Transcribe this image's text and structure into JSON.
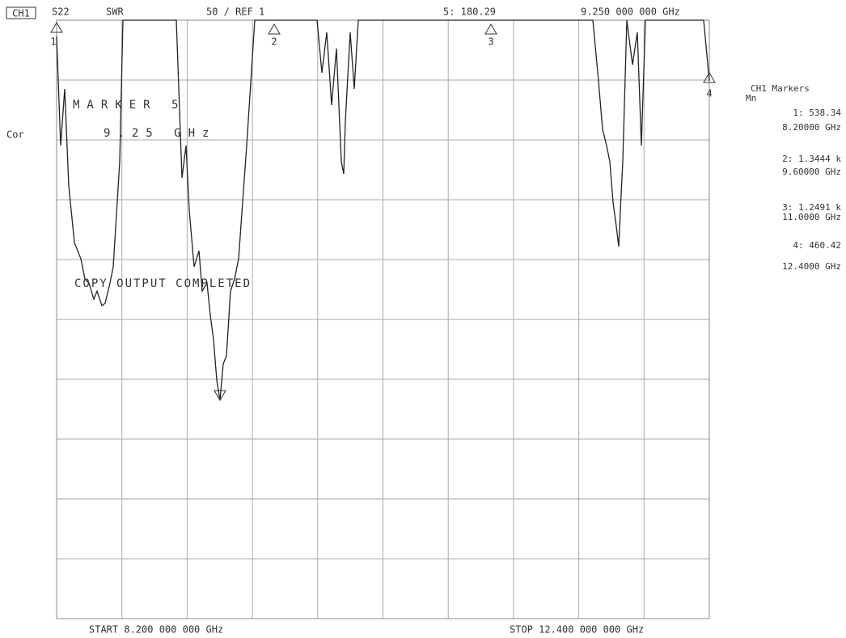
{
  "header": {
    "channel": "CH1",
    "parameter": "S22",
    "format": "SWR",
    "scale": "50 / REF 1",
    "active_marker_value": "5: 180.29",
    "active_marker_frequency": "9.250 000 000 GHz"
  },
  "status": "Cor",
  "marker_annotation": {
    "title": "MARKER 5",
    "frequency": "9.25 GHz"
  },
  "message": "COPY OUTPUT COMPLETED",
  "marker_flags": [
    "1",
    "2",
    "3",
    "4"
  ],
  "markers_panel": {
    "title": "CH1 Markers",
    "mode": "Mn",
    "entries": [
      {
        "value": "1: 538.34",
        "frequency": "8.20000 GHz"
      },
      {
        "value": "2: 1.3444 k",
        "frequency": "9.60000 GHz"
      },
      {
        "value": "3: 1.2491 k",
        "frequency": "11.0000 GHz"
      },
      {
        "value": "4: 460.42",
        "frequency": "12.4000 GHz"
      }
    ]
  },
  "footer": {
    "start": "START 8.200 000 000 GHz",
    "stop": "STOP 12.400 000 000 GHz"
  }
}
